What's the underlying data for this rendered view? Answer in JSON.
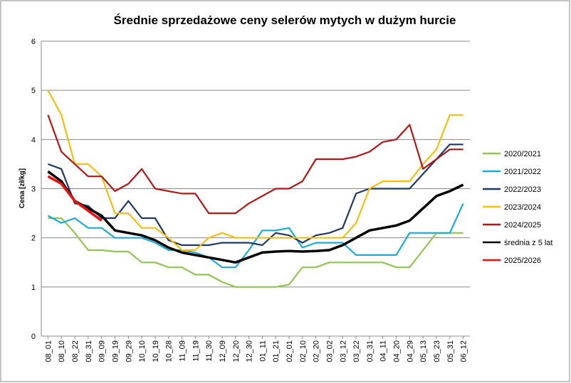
{
  "chart_data": {
    "type": "line",
    "title": "Średnie sprzedażowe ceny selerów mytych w dużym hurcie",
    "y_label": "Cena [zł/kg]",
    "categories": [
      "08_01",
      "08_10",
      "08_22",
      "08_31",
      "09_09",
      "09_19",
      "09_29",
      "10_10",
      "10_19",
      "10_28",
      "11_09",
      "11_19",
      "11_30",
      "12_09",
      "12_20",
      "12_30",
      "01_11",
      "01_21",
      "02_01",
      "02_10",
      "02_20",
      "03_02",
      "03_12",
      "03_22",
      "03_31",
      "04_11",
      "04_20",
      "04_29",
      "05_13",
      "05_23",
      "05_31",
      "06_12"
    ],
    "ylim": [
      0,
      6
    ],
    "yticks": [
      0,
      1,
      2,
      3,
      4,
      5,
      6
    ],
    "grid": true,
    "legend": "right",
    "series": [
      {
        "name": "2020/2021",
        "color": "#92c353",
        "values": [
          2.4,
          2.4,
          2.1,
          1.75,
          1.75,
          1.72,
          1.72,
          1.5,
          1.5,
          1.4,
          1.4,
          1.25,
          1.25,
          1.1,
          1.0,
          1.0,
          1.0,
          1.0,
          1.05,
          1.4,
          1.4,
          1.5,
          1.5,
          1.5,
          1.5,
          1.5,
          1.4,
          1.4,
          1.75,
          2.1,
          2.1,
          2.1
        ]
      },
      {
        "name": "2021/2022",
        "color": "#1eaad2",
        "values": [
          2.45,
          2.3,
          2.4,
          2.2,
          2.2,
          2.0,
          2.0,
          2.0,
          1.9,
          1.75,
          1.75,
          1.7,
          1.6,
          1.4,
          1.4,
          1.75,
          2.15,
          2.15,
          2.2,
          1.8,
          1.9,
          1.9,
          1.9,
          1.65,
          1.65,
          1.65,
          1.65,
          2.1,
          2.1,
          2.1,
          2.1,
          2.7
        ]
      },
      {
        "name": "2022/2023",
        "color": "#1f3864",
        "values": [
          3.5,
          3.4,
          2.7,
          2.65,
          2.4,
          2.4,
          2.75,
          2.4,
          2.4,
          1.95,
          1.85,
          1.85,
          1.85,
          1.9,
          1.9,
          1.9,
          1.85,
          2.1,
          2.05,
          1.9,
          2.05,
          2.1,
          2.2,
          2.9,
          3.0,
          3.0,
          3.0,
          3.0,
          3.3,
          3.6,
          3.9,
          3.9
        ]
      },
      {
        "name": "2023/2024",
        "color": "#f5be14",
        "values": [
          5.0,
          4.5,
          3.5,
          3.5,
          3.25,
          2.5,
          2.5,
          2.2,
          2.2,
          2.0,
          1.75,
          1.75,
          2.0,
          2.1,
          2.0,
          2.0,
          2.0,
          2.0,
          2.0,
          2.0,
          2.0,
          2.0,
          2.0,
          2.3,
          3.0,
          3.15,
          3.15,
          3.15,
          3.5,
          3.8,
          4.5,
          4.5
        ]
      },
      {
        "name": "2024/2025",
        "color": "#b01818",
        "values": [
          4.5,
          3.75,
          3.5,
          3.25,
          3.25,
          2.95,
          3.1,
          3.4,
          3.0,
          2.95,
          2.9,
          2.9,
          2.5,
          2.5,
          2.5,
          2.7,
          2.85,
          3.0,
          3.0,
          3.15,
          3.6,
          3.6,
          3.6,
          3.65,
          3.75,
          3.95,
          4.0,
          4.3,
          3.4,
          3.6,
          3.8,
          3.8
        ]
      },
      {
        "name": "średnia z 5 lat",
        "color": "#000000",
        "values": [
          3.35,
          3.15,
          2.75,
          2.6,
          2.45,
          2.15,
          2.1,
          2.05,
          1.95,
          1.8,
          1.7,
          1.65,
          1.6,
          1.55,
          1.5,
          1.6,
          1.7,
          1.72,
          1.73,
          1.72,
          1.73,
          1.75,
          1.85,
          2.0,
          2.15,
          2.2,
          2.25,
          2.35,
          2.6,
          2.85,
          2.95,
          3.08
        ]
      },
      {
        "name": "2025/2026",
        "color": "#ee1111",
        "values": [
          3.25,
          3.1,
          2.75,
          2.55,
          2.35,
          null,
          null,
          null,
          null,
          null,
          null,
          null,
          null,
          null,
          null,
          null,
          null,
          null,
          null,
          null,
          null,
          null,
          null,
          null,
          null,
          null,
          null,
          null,
          null,
          null,
          null,
          null
        ]
      }
    ]
  }
}
